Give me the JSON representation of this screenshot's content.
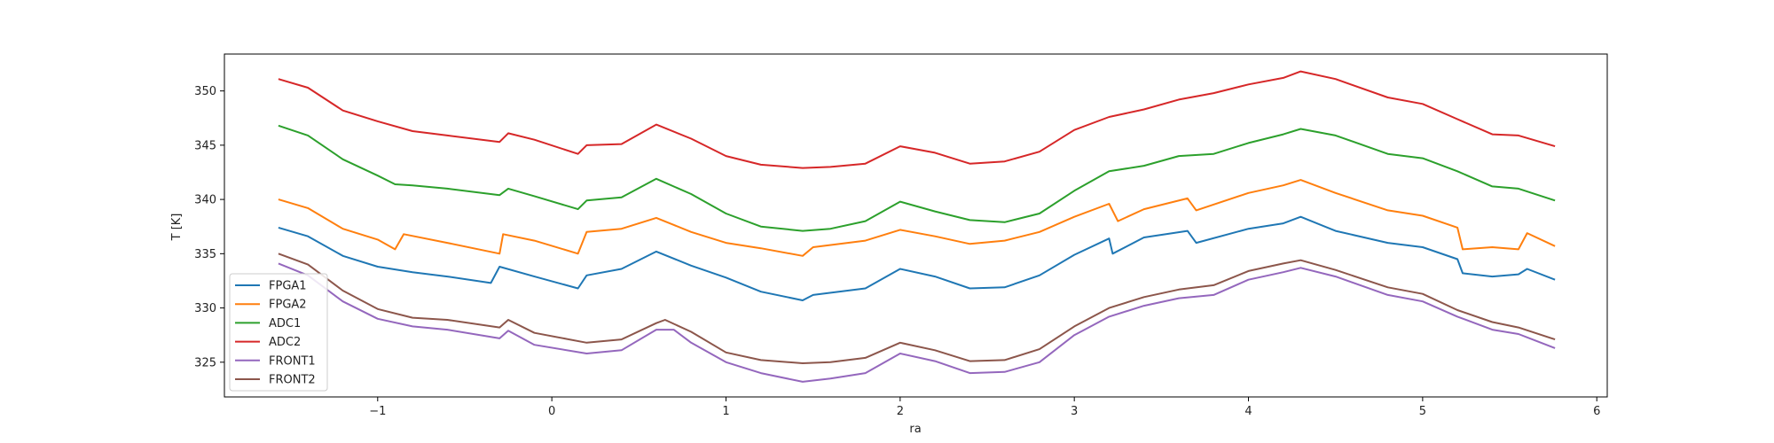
{
  "chart_data": {
    "type": "line",
    "title": "",
    "xlabel": "ra",
    "ylabel": "T [K]",
    "xlim": [
      -1.88,
      6.06
    ],
    "ylim": [
      321.8,
      353.4
    ],
    "xticks": [
      -1,
      0,
      1,
      2,
      3,
      4,
      5,
      6
    ],
    "xtick_labels": [
      "−1",
      "0",
      "1",
      "2",
      "3",
      "4",
      "5",
      "6"
    ],
    "yticks": [
      325,
      330,
      335,
      340,
      345,
      350
    ],
    "ytick_labels": [
      "325",
      "330",
      "335",
      "340",
      "345",
      "350"
    ],
    "grid": false,
    "legend_position": "lower-left",
    "series": [
      {
        "name": "FPGA1",
        "color": "#1f77b4",
        "x": [
          -1.57,
          -1.4,
          -1.2,
          -1.0,
          -0.8,
          -0.6,
          -0.35,
          -0.3,
          -0.1,
          0.15,
          0.2,
          0.4,
          0.6,
          0.8,
          1.0,
          1.2,
          1.44,
          1.5,
          1.8,
          2.0,
          2.2,
          2.4,
          2.6,
          2.8,
          3.0,
          3.2,
          3.22,
          3.4,
          3.65,
          3.7,
          4.0,
          4.2,
          4.3,
          4.5,
          4.8,
          5.0,
          5.2,
          5.23,
          5.4,
          5.55,
          5.6,
          5.76
        ],
        "y": [
          337.4,
          336.6,
          334.8,
          333.8,
          333.3,
          332.9,
          332.3,
          333.8,
          332.9,
          331.8,
          333.0,
          333.6,
          335.2,
          333.9,
          332.8,
          331.5,
          330.7,
          331.2,
          331.8,
          333.6,
          332.9,
          331.8,
          331.9,
          333.0,
          334.9,
          336.4,
          335.0,
          336.5,
          337.1,
          336.0,
          337.3,
          337.8,
          338.4,
          337.1,
          336.0,
          335.6,
          334.5,
          333.2,
          332.9,
          333.1,
          333.6,
          332.6
        ]
      },
      {
        "name": "FPGA2",
        "color": "#ff7f0e",
        "x": [
          -1.57,
          -1.4,
          -1.2,
          -1.0,
          -0.9,
          -0.85,
          -0.6,
          -0.3,
          -0.28,
          -0.1,
          0.15,
          0.2,
          0.4,
          0.6,
          0.8,
          1.0,
          1.2,
          1.44,
          1.5,
          1.8,
          2.0,
          2.2,
          2.4,
          2.6,
          2.8,
          3.0,
          3.2,
          3.25,
          3.4,
          3.65,
          3.7,
          4.0,
          4.2,
          4.3,
          4.5,
          4.8,
          5.0,
          5.2,
          5.23,
          5.4,
          5.55,
          5.6,
          5.76
        ],
        "y": [
          340.0,
          339.2,
          337.3,
          336.3,
          335.4,
          336.8,
          336.0,
          335.0,
          336.8,
          336.2,
          335.0,
          337.0,
          337.3,
          338.3,
          337.0,
          336.0,
          335.5,
          334.8,
          335.6,
          336.2,
          337.2,
          336.6,
          335.9,
          336.2,
          337.0,
          338.4,
          339.6,
          338.0,
          339.1,
          340.1,
          339.0,
          340.6,
          341.3,
          341.8,
          340.6,
          339.0,
          338.5,
          337.4,
          335.4,
          335.6,
          335.4,
          336.9,
          335.7
        ]
      },
      {
        "name": "ADC1",
        "color": "#2ca02c",
        "x": [
          -1.57,
          -1.4,
          -1.2,
          -1.0,
          -0.9,
          -0.8,
          -0.6,
          -0.3,
          -0.25,
          -0.1,
          0.15,
          0.2,
          0.4,
          0.6,
          0.8,
          1.0,
          1.2,
          1.44,
          1.6,
          1.8,
          2.0,
          2.2,
          2.4,
          2.6,
          2.8,
          3.0,
          3.2,
          3.4,
          3.6,
          3.8,
          4.0,
          4.2,
          4.3,
          4.5,
          4.8,
          5.0,
          5.2,
          5.4,
          5.55,
          5.76
        ],
        "y": [
          346.8,
          345.9,
          343.7,
          342.2,
          341.4,
          341.3,
          341.0,
          340.4,
          341.0,
          340.3,
          339.1,
          339.9,
          340.2,
          341.9,
          340.5,
          338.7,
          337.5,
          337.1,
          337.3,
          338.0,
          339.8,
          338.9,
          338.1,
          337.9,
          338.7,
          340.8,
          342.6,
          343.1,
          344.0,
          344.2,
          345.2,
          346.0,
          346.5,
          345.9,
          344.2,
          343.8,
          342.6,
          341.2,
          341.0,
          339.9
        ]
      },
      {
        "name": "ADC2",
        "color": "#d62728",
        "x": [
          -1.57,
          -1.4,
          -1.2,
          -1.0,
          -0.8,
          -0.6,
          -0.3,
          -0.25,
          -0.1,
          0.15,
          0.2,
          0.4,
          0.6,
          0.8,
          1.0,
          1.2,
          1.44,
          1.6,
          1.8,
          2.0,
          2.2,
          2.4,
          2.6,
          2.8,
          3.0,
          3.2,
          3.4,
          3.6,
          3.8,
          4.0,
          4.2,
          4.3,
          4.5,
          4.8,
          5.0,
          5.2,
          5.4,
          5.55,
          5.76
        ],
        "y": [
          351.1,
          350.3,
          348.2,
          347.2,
          346.3,
          345.9,
          345.3,
          346.1,
          345.5,
          344.2,
          345.0,
          345.1,
          346.9,
          345.6,
          344.0,
          343.2,
          342.9,
          343.0,
          343.3,
          344.9,
          344.3,
          343.3,
          343.5,
          344.4,
          346.4,
          347.6,
          348.3,
          349.2,
          349.8,
          350.6,
          351.2,
          351.8,
          351.1,
          349.4,
          348.8,
          347.4,
          346.0,
          345.9,
          344.9
        ]
      },
      {
        "name": "FRONT1",
        "color": "#9467bd",
        "x": [
          -1.57,
          -1.4,
          -1.2,
          -1.0,
          -0.8,
          -0.6,
          -0.3,
          -0.25,
          -0.1,
          0.2,
          0.4,
          0.6,
          0.7,
          0.8,
          1.0,
          1.2,
          1.44,
          1.6,
          1.8,
          2.0,
          2.2,
          2.4,
          2.6,
          2.8,
          3.0,
          3.2,
          3.4,
          3.6,
          3.8,
          4.0,
          4.2,
          4.3,
          4.5,
          4.8,
          5.0,
          5.2,
          5.4,
          5.55,
          5.76
        ],
        "y": [
          334.1,
          333.0,
          330.6,
          329.0,
          328.3,
          328.0,
          327.2,
          327.9,
          326.6,
          325.8,
          326.1,
          328.0,
          328.0,
          326.8,
          325.0,
          324.0,
          323.2,
          323.5,
          324.0,
          325.8,
          325.1,
          324.0,
          324.1,
          325.0,
          327.5,
          329.2,
          330.2,
          330.9,
          331.2,
          332.6,
          333.3,
          333.7,
          332.9,
          331.2,
          330.6,
          329.2,
          328.0,
          327.6,
          326.3
        ]
      },
      {
        "name": "FRONT2",
        "color": "#8c564b",
        "x": [
          -1.57,
          -1.4,
          -1.2,
          -1.0,
          -0.8,
          -0.6,
          -0.3,
          -0.25,
          -0.1,
          0.2,
          0.4,
          0.6,
          0.65,
          0.8,
          1.0,
          1.2,
          1.44,
          1.6,
          1.8,
          2.0,
          2.2,
          2.4,
          2.6,
          2.8,
          3.0,
          3.2,
          3.4,
          3.6,
          3.8,
          4.0,
          4.2,
          4.3,
          4.5,
          4.8,
          5.0,
          5.2,
          5.4,
          5.55,
          5.76
        ],
        "y": [
          335.0,
          334.0,
          331.6,
          329.9,
          329.1,
          328.9,
          328.2,
          328.9,
          327.7,
          326.8,
          327.1,
          328.6,
          328.9,
          327.8,
          325.9,
          325.2,
          324.9,
          325.0,
          325.4,
          326.8,
          326.1,
          325.1,
          325.2,
          326.2,
          328.3,
          330.0,
          331.0,
          331.7,
          332.1,
          333.4,
          334.1,
          334.4,
          333.5,
          331.9,
          331.3,
          329.8,
          328.7,
          328.2,
          327.1
        ]
      }
    ]
  }
}
